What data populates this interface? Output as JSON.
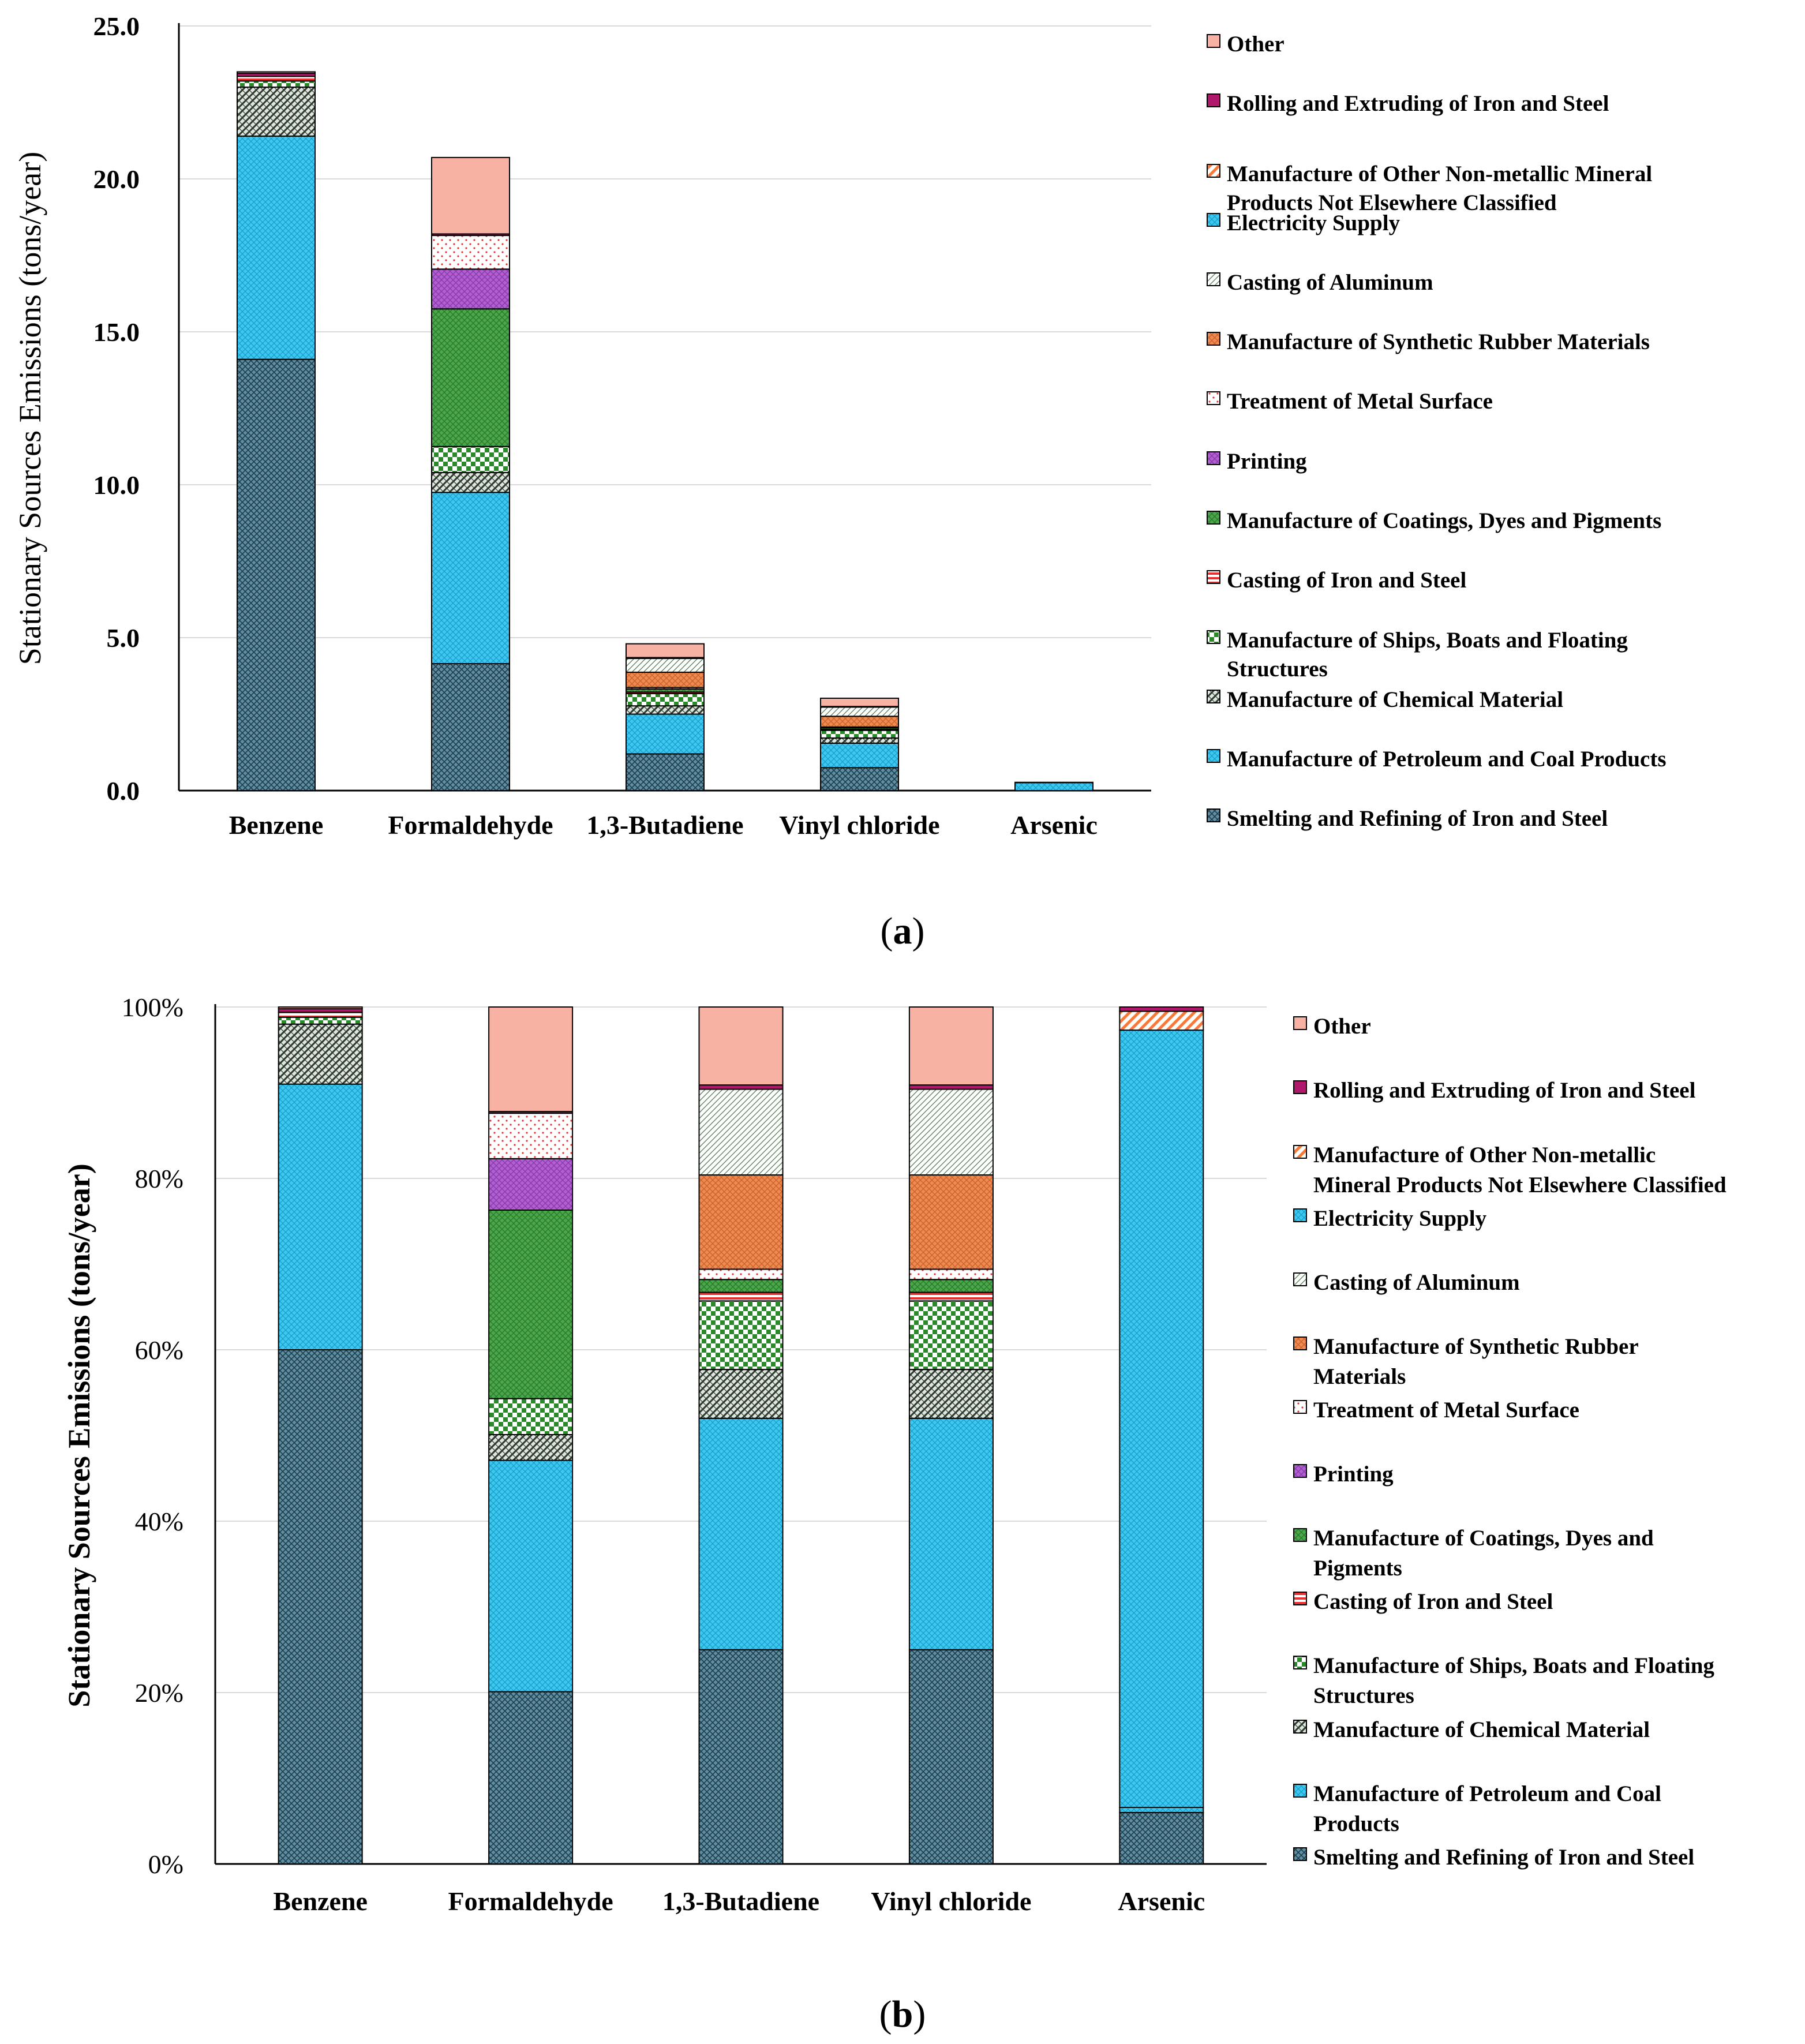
{
  "categories": [
    "Smelting and Refining of Iron and Steel",
    "Manufacture of Petroleum and Coal Products",
    "Manufacture of Chemical Material",
    "Manufacture of Ships, Boats and Floating Structures",
    "Casting of Iron and Steel",
    "Manufacture of Coatings, Dyes and Pigments",
    "Printing",
    "Treatment of Metal Surface",
    "Manufacture of Synthetic Rubber Materials",
    "Casting of Aluminum",
    "Electricity Supply",
    "Manufacture of Other Non-metallic Mineral Products Not Elsewhere Classified",
    "Rolling and Extruding of Iron and Steel",
    "Other"
  ],
  "colors": {
    "smelting": "#5f8fa3",
    "petroleum": "#3cc8f0",
    "chemical": "#4d5a4d",
    "ships": "#2a8a2a",
    "casting_iron": "#e83030",
    "coatings": "#4aa84a",
    "printing": "#b060d0",
    "treatment": "#f4b0b0",
    "rubber": "#f08a50",
    "aluminum": "#8fb08f",
    "electricity": "#3cc8f0",
    "nonmetallic": "#f47a3c",
    "rolling": "#b0186c",
    "other": "#f7b2a4"
  },
  "chart_data": [
    {
      "type": "bar",
      "stacked": true,
      "panel": "(a)",
      "title": "",
      "xlabel": "",
      "ylabel": "Stationary Sources Emissions (tons/year)",
      "categories": [
        "Benzene",
        "Formaldehyde",
        "1,3-Butadiene",
        "Vinyl chloride",
        "Arsenic"
      ],
      "ylim": [
        0,
        25
      ],
      "yticks": [
        "0.0",
        "5.0",
        "10.0",
        "15.0",
        "20.0",
        "25.0"
      ],
      "ytick_values": [
        0,
        5,
        10,
        15,
        20,
        25
      ],
      "legend": [
        "Other",
        "Rolling and Extruding of Iron and Steel",
        "Manufacture of Other Non-metallic Mineral Products Not Elsewhere Classified",
        "Electricity Supply",
        "Casting of Aluminum",
        "Manufacture of Synthetic Rubber Materials",
        "Treatment of Metal Surface",
        "Printing",
        "Manufacture of Coatings, Dyes and Pigments",
        "Casting of Iron and Steel",
        "Manufacture of Ships, Boats and Floating Structures",
        "Manufacture of Chemical Material",
        "Manufacture of Petroleum and Coal Products",
        "Smelting and Refining of Iron and Steel"
      ],
      "series": [
        {
          "name": "Smelting and Refining of Iron and Steel",
          "key": "smelting",
          "values": [
            14.1,
            4.15,
            1.2,
            0.75,
            0.0
          ]
        },
        {
          "name": "Manufacture of Petroleum and Coal Products",
          "key": "petroleum",
          "values": [
            7.3,
            5.6,
            1.3,
            0.8,
            0.0
          ]
        },
        {
          "name": "Manufacture of Chemical Material",
          "key": "chemical",
          "values": [
            1.6,
            0.65,
            0.27,
            0.17,
            0.0
          ]
        },
        {
          "name": "Manufacture of Ships, Boats and Floating Structures",
          "key": "ships",
          "values": [
            0.2,
            0.85,
            0.4,
            0.25,
            0.0
          ]
        },
        {
          "name": "Casting of Iron and Steel",
          "key": "casting_iron",
          "values": [
            0.15,
            0.0,
            0.05,
            0.03,
            0.0
          ]
        },
        {
          "name": "Manufacture of Coatings, Dyes and Pigments",
          "key": "coatings",
          "values": [
            0.0,
            4.5,
            0.1,
            0.05,
            0.0
          ]
        },
        {
          "name": "Printing",
          "key": "printing",
          "values": [
            0.0,
            1.3,
            0.0,
            0.0,
            0.0
          ]
        },
        {
          "name": "Treatment of Metal Surface",
          "key": "treatment",
          "values": [
            0.0,
            1.1,
            0.05,
            0.03,
            0.0
          ]
        },
        {
          "name": "Manufacture of Synthetic Rubber Materials",
          "key": "rubber",
          "values": [
            0.0,
            0.0,
            0.5,
            0.35,
            0.0
          ]
        },
        {
          "name": "Casting of Aluminum",
          "key": "aluminum",
          "values": [
            0.0,
            0.0,
            0.45,
            0.3,
            0.0
          ]
        },
        {
          "name": "Electricity Supply",
          "key": "electricity",
          "values": [
            0.0,
            0.0,
            0.0,
            0.0,
            0.26
          ]
        },
        {
          "name": "Manufacture of Other Non-metallic Mineral Products Not Elsewhere Classified",
          "key": "nonmetallic",
          "values": [
            0.0,
            0.0,
            0.0,
            0.0,
            0.01
          ]
        },
        {
          "name": "Rolling and Extruding of Iron and Steel",
          "key": "rolling",
          "values": [
            0.1,
            0.05,
            0.03,
            0.02,
            0.0
          ]
        },
        {
          "name": "Other",
          "key": "other",
          "values": [
            0.05,
            2.5,
            0.45,
            0.27,
            0.0
          ]
        }
      ]
    },
    {
      "type": "bar",
      "stacked": true,
      "panel": "(b)",
      "title": "",
      "xlabel": "",
      "ylabel": "Stationary Sources Emissions (tons/year)",
      "categories": [
        "Benzene",
        "Formaldehyde",
        "1,3-Butadiene",
        "Vinyl chloride",
        "Arsenic"
      ],
      "ylim": [
        0,
        100
      ],
      "yticks": [
        "0%",
        "20%",
        "40%",
        "60%",
        "80%",
        "100%"
      ],
      "ytick_values": [
        0,
        20,
        40,
        60,
        80,
        100
      ],
      "legend": [
        "Other",
        "Rolling and Extruding of Iron and Steel",
        "Manufacture of Other Non-metallic Mineral Products Not Elsewhere Classified",
        "Electricity Supply",
        "Casting of Aluminum",
        "Manufacture of Synthetic Rubber Materials",
        "Treatment of Metal Surface",
        "Printing",
        "Manufacture of Coatings, Dyes and Pigments",
        "Casting of Iron and Steel",
        "Manufacture of Ships, Boats and Floating Structures",
        "Manufacture of Chemical Material",
        "Manufacture of Petroleum and Coal Products",
        "Smelting and Refining of Iron and Steel"
      ],
      "series": [
        {
          "name": "Smelting and Refining of Iron and Steel",
          "key": "smelting",
          "values": [
            60.0,
            20.1,
            25.0,
            25.0,
            6.0
          ]
        },
        {
          "name": "Manufacture of Petroleum and Coal Products",
          "key": "petroleum",
          "values": [
            31.0,
            27.0,
            27.0,
            27.0,
            0.6
          ]
        },
        {
          "name": "Manufacture of Chemical Material",
          "key": "chemical",
          "values": [
            7.0,
            3.0,
            5.7,
            5.7,
            0.0
          ]
        },
        {
          "name": "Manufacture of Ships, Boats and Floating Structures",
          "key": "ships",
          "values": [
            0.8,
            4.2,
            8.0,
            8.0,
            0.0
          ]
        },
        {
          "name": "Casting of Iron and Steel",
          "key": "casting_iron",
          "values": [
            0.6,
            0.0,
            1.0,
            1.0,
            0.0
          ]
        },
        {
          "name": "Manufacture of Coatings, Dyes and Pigments",
          "key": "coatings",
          "values": [
            0.0,
            22.0,
            1.5,
            1.5,
            0.0
          ]
        },
        {
          "name": "Printing",
          "key": "printing",
          "values": [
            0.0,
            6.0,
            0.0,
            0.0,
            0.0
          ]
        },
        {
          "name": "Treatment of Metal Surface",
          "key": "treatment",
          "values": [
            0.0,
            5.3,
            1.2,
            1.2,
            0.0
          ]
        },
        {
          "name": "Manufacture of Synthetic Rubber Materials",
          "key": "rubber",
          "values": [
            0.0,
            0.0,
            11.0,
            11.0,
            0.0
          ]
        },
        {
          "name": "Casting of Aluminum",
          "key": "aluminum",
          "values": [
            0.0,
            0.0,
            10.0,
            10.0,
            0.0
          ]
        },
        {
          "name": "Electricity Supply",
          "key": "electricity",
          "values": [
            0.0,
            0.0,
            0.0,
            0.0,
            90.7
          ]
        },
        {
          "name": "Manufacture of Other Non-metallic Mineral Products Not Elsewhere Classified",
          "key": "nonmetallic",
          "values": [
            0.0,
            0.0,
            0.0,
            0.0,
            2.2
          ]
        },
        {
          "name": "Rolling and Extruding of Iron and Steel",
          "key": "rolling",
          "values": [
            0.4,
            0.2,
            0.5,
            0.5,
            0.5
          ]
        },
        {
          "name": "Other",
          "key": "other",
          "values": [
            0.2,
            12.2,
            9.1,
            9.1,
            0.0
          ]
        }
      ]
    }
  ],
  "legend_lines_a": [
    [
      "Other"
    ],
    [
      "Rolling and Extruding of Iron and Steel"
    ],
    [
      "Manufacture of Other Non-metallic Mineral",
      "Products Not Elsewhere Classified"
    ],
    [
      "Electricity Supply"
    ],
    [
      "Casting of Aluminum"
    ],
    [
      "Manufacture of Synthetic Rubber Materials"
    ],
    [
      "Treatment of Metal Surface"
    ],
    [
      "Printing"
    ],
    [
      "Manufacture of Coatings, Dyes and Pigments"
    ],
    [
      "Casting of Iron and Steel"
    ],
    [
      "Manufacture of Ships, Boats and Floating",
      "Structures"
    ],
    [
      "Manufacture of Chemical Material"
    ],
    [
      "Manufacture of Petroleum and Coal Products"
    ],
    [
      "Smelting and Refining of Iron and Steel"
    ]
  ],
  "legend_lines_b": [
    [
      "Other"
    ],
    [
      "Rolling and Extruding of Iron and Steel"
    ],
    [
      "Manufacture of Other Non-metallic",
      "Mineral Products Not Elsewhere Classified"
    ],
    [
      "Electricity Supply"
    ],
    [
      "Casting of Aluminum"
    ],
    [
      "Manufacture of Synthetic Rubber",
      "Materials"
    ],
    [
      "Treatment of Metal Surface"
    ],
    [
      "Printing"
    ],
    [
      "Manufacture of Coatings, Dyes and",
      "Pigments"
    ],
    [
      "Casting of Iron and Steel"
    ],
    [
      "Manufacture of Ships, Boats and Floating",
      "Structures"
    ],
    [
      "Manufacture of Chemical Material"
    ],
    [
      "Manufacture of Petroleum and Coal",
      "Products"
    ],
    [
      "Smelting and Refining of Iron and Steel"
    ]
  ]
}
